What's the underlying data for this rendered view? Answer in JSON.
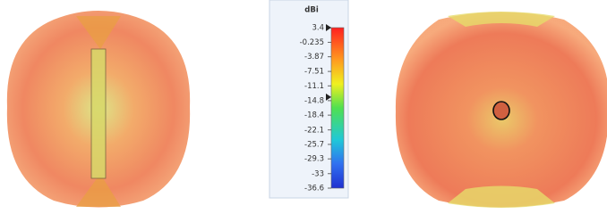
{
  "colorbar": {
    "title": "dBi",
    "range": [
      3.4,
      -36.6
    ],
    "ticks": [
      3.4,
      -0.235,
      -3.87,
      -7.51,
      -11.1,
      -14.8,
      -18.4,
      -22.1,
      -25.7,
      -29.3,
      -33,
      -36.6
    ]
  }
}
